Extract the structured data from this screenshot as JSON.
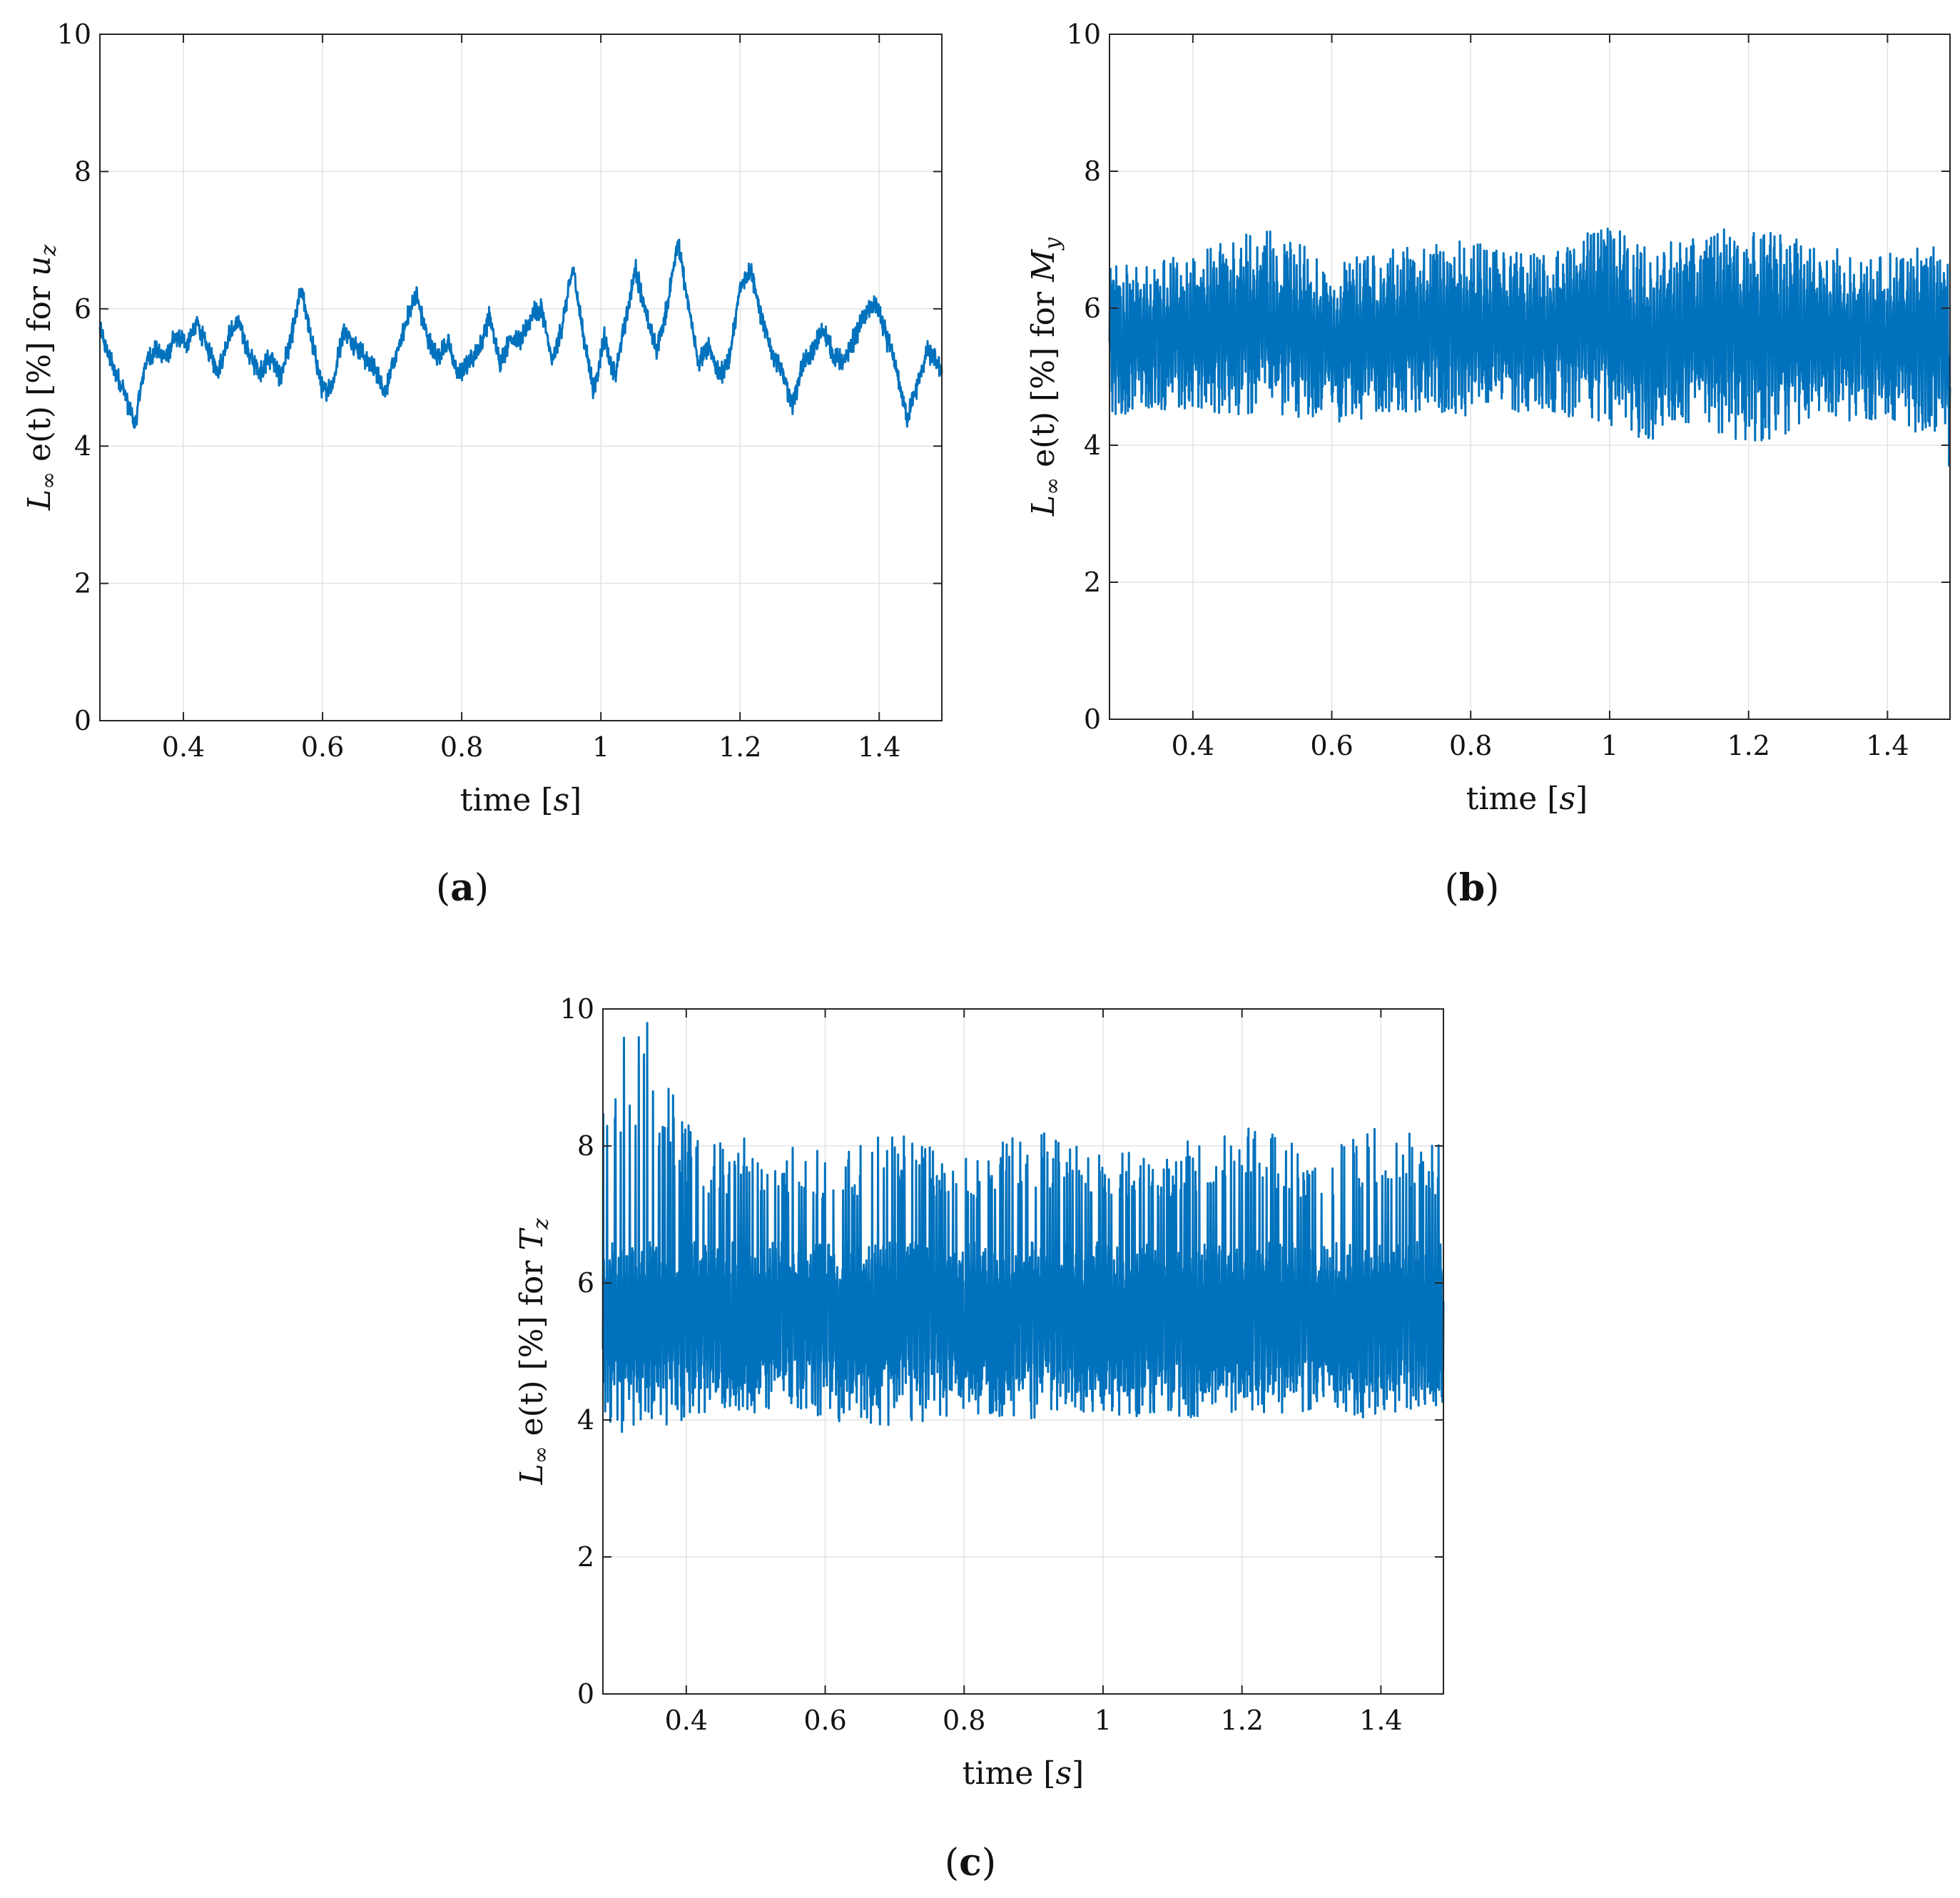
{
  "panels": [
    {
      "label_open": "(",
      "label_letter": "a",
      "label_close": ")"
    },
    {
      "label_open": "(",
      "label_letter": "b",
      "label_close": ")"
    },
    {
      "label_open": "(",
      "label_letter": "c",
      "label_close": ")"
    }
  ],
  "chart_data": [
    {
      "type": "line",
      "panel": "a",
      "xlabel": "time [s]",
      "xlabel_parts": {
        "pre": "time [",
        "var": "s",
        "post": "]"
      },
      "ylabel": "L∞ e(t) [%] for u_z",
      "ylabel_parts": {
        "sym": "L",
        "sub": "∞",
        "mid": " e(t) [%] for ",
        "var": "u",
        "var_sub": "z"
      },
      "xlim": [
        0.28,
        1.49
      ],
      "ylim": [
        0,
        10
      ],
      "xticks": [
        0.4,
        0.6,
        0.8,
        1.0,
        1.2,
        1.4
      ],
      "xtick_labels": [
        "0.4",
        "0.6",
        "0.8",
        "1",
        "1.2",
        "1.4"
      ],
      "yticks": [
        0,
        2,
        4,
        6,
        8,
        10
      ],
      "ytick_labels": [
        "0",
        "2",
        "4",
        "6",
        "8",
        "10"
      ],
      "grid": true,
      "color": "#0072BD",
      "x": [
        0.28,
        0.3,
        0.315,
        0.33,
        0.345,
        0.36,
        0.375,
        0.39,
        0.405,
        0.42,
        0.435,
        0.45,
        0.465,
        0.48,
        0.495,
        0.51,
        0.525,
        0.54,
        0.555,
        0.57,
        0.585,
        0.6,
        0.615,
        0.63,
        0.645,
        0.66,
        0.675,
        0.69,
        0.705,
        0.72,
        0.735,
        0.75,
        0.765,
        0.78,
        0.795,
        0.81,
        0.825,
        0.84,
        0.855,
        0.87,
        0.885,
        0.9,
        0.915,
        0.93,
        0.945,
        0.96,
        0.975,
        0.99,
        1.005,
        1.02,
        1.035,
        1.05,
        1.065,
        1.08,
        1.095,
        1.11,
        1.125,
        1.14,
        1.155,
        1.17,
        1.185,
        1.2,
        1.215,
        1.23,
        1.245,
        1.26,
        1.275,
        1.29,
        1.305,
        1.32,
        1.335,
        1.35,
        1.365,
        1.38,
        1.395,
        1.41,
        1.425,
        1.44,
        1.455,
        1.47,
        1.49
      ],
      "y": [
        5.7,
        5.1,
        4.8,
        4.3,
        5.2,
        5.4,
        5.3,
        5.6,
        5.5,
        5.8,
        5.4,
        5.1,
        5.6,
        5.8,
        5.3,
        5.1,
        5.3,
        5.0,
        5.6,
        6.3,
        5.5,
        4.8,
        4.9,
        5.7,
        5.5,
        5.3,
        5.1,
        4.8,
        5.3,
        5.8,
        6.2,
        5.6,
        5.3,
        5.5,
        5.0,
        5.2,
        5.4,
        5.9,
        5.2,
        5.6,
        5.5,
        5.9,
        6.0,
        5.2,
        5.8,
        6.6,
        5.6,
        4.8,
        5.6,
        5.0,
        5.8,
        6.6,
        5.9,
        5.4,
        6.0,
        7.0,
        6.1,
        5.2,
        5.5,
        5.0,
        5.3,
        6.3,
        6.6,
        5.9,
        5.4,
        5.1,
        4.6,
        5.2,
        5.4,
        5.7,
        5.3,
        5.2,
        5.6,
        5.9,
        6.1,
        5.6,
        5.1,
        4.4,
        4.9,
        5.4,
        5.1
      ],
      "jitter": 0.18
    },
    {
      "type": "line",
      "panel": "b",
      "xlabel": "time [s]",
      "xlabel_parts": {
        "pre": "time [",
        "var": "s",
        "post": "]"
      },
      "ylabel": "L∞ e(t) [%] for M_y",
      "ylabel_parts": {
        "sym": "L",
        "sub": "∞",
        "mid": " e(t) [%] for ",
        "var": "M",
        "var_sub": "y"
      },
      "xlim": [
        0.28,
        1.49
      ],
      "ylim": [
        0,
        10
      ],
      "xticks": [
        0.4,
        0.6,
        0.8,
        1.0,
        1.2,
        1.4
      ],
      "xtick_labels": [
        "0.4",
        "0.6",
        "0.8",
        "1",
        "1.2",
        "1.4"
      ],
      "yticks": [
        0,
        2,
        4,
        6,
        8,
        10
      ],
      "ytick_labels": [
        "0",
        "2",
        "4",
        "6",
        "8",
        "10"
      ],
      "grid": true,
      "color": "#0072BD",
      "x": [
        0.28,
        0.4,
        0.5,
        0.6,
        0.7,
        0.8,
        0.9,
        1.0,
        1.05,
        1.1,
        1.2,
        1.3,
        1.4,
        1.48,
        1.49
      ],
      "y_upper": [
        6.6,
        6.8,
        7.2,
        6.7,
        6.9,
        7.0,
        6.8,
        7.3,
        6.9,
        7.0,
        7.3,
        6.9,
        6.8,
        7.1,
        6.6
      ],
      "y_lower": [
        4.4,
        4.5,
        4.4,
        4.3,
        4.5,
        4.4,
        4.5,
        4.3,
        4.0,
        4.3,
        4.0,
        4.3,
        4.3,
        4.1,
        3.6
      ],
      "oscillation_period": 0.0048
    },
    {
      "type": "line",
      "panel": "c",
      "xlabel": "time [s]",
      "xlabel_parts": {
        "pre": "time [",
        "var": "s",
        "post": "]"
      },
      "ylabel": "L∞ e(t) [%] for T_z",
      "ylabel_parts": {
        "sym": "L",
        "sub": "∞",
        "mid": " e(t) [%] for ",
        "var": "T",
        "var_sub": "z"
      },
      "xlim": [
        0.28,
        1.49
      ],
      "ylim": [
        0,
        10
      ],
      "xticks": [
        0.4,
        0.6,
        0.8,
        1.0,
        1.2,
        1.4
      ],
      "xtick_labels": [
        "0.4",
        "0.6",
        "0.8",
        "1",
        "1.2",
        "1.4"
      ],
      "yticks": [
        0,
        2,
        4,
        6,
        8,
        10
      ],
      "ytick_labels": [
        "0",
        "2",
        "4",
        "6",
        "8",
        "10"
      ],
      "grid": true,
      "color": "#0072BD",
      "x": [
        0.28,
        0.3,
        0.34,
        0.38,
        0.42,
        0.5,
        0.6,
        0.7,
        0.8,
        0.9,
        1.0,
        1.1,
        1.2,
        1.3,
        1.4,
        1.49
      ],
      "y_upper": [
        9.3,
        9.5,
        9.9,
        8.8,
        8.0,
        8.2,
        7.9,
        8.2,
        7.8,
        8.3,
        7.9,
        8.0,
        8.4,
        7.9,
        8.4,
        8.0
      ],
      "y_lower": [
        4.0,
        3.8,
        3.7,
        3.9,
        4.1,
        4.1,
        4.0,
        3.9,
        4.1,
        4.0,
        4.1,
        4.0,
        4.0,
        4.1,
        4.0,
        4.1
      ],
      "core_upper": 6.3,
      "core_lower": 4.9,
      "oscillation_period": 0.0042
    }
  ]
}
